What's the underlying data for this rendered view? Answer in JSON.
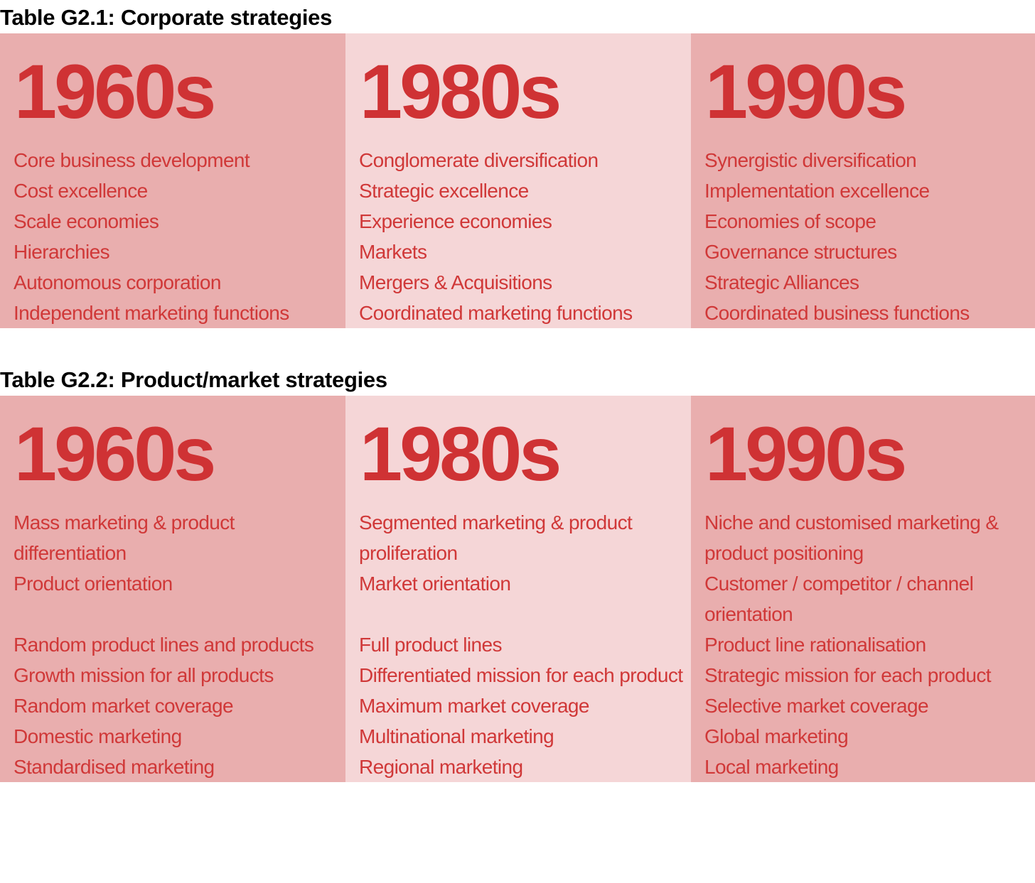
{
  "tables": [
    {
      "title": "Table G2.1: Corporate strategies",
      "headings": [
        "1960s",
        "1980s",
        "1990s"
      ],
      "rows": [
        [
          "Core business development",
          "Conglomerate diversification",
          "Synergistic diversification"
        ],
        [
          "Cost excellence",
          "Strategic excellence",
          "Implementation excellence"
        ],
        [
          "Scale economies",
          "Experience economies",
          "Economies of scope"
        ],
        [
          "Hierarchies",
          "Markets",
          "Governance structures"
        ],
        [
          "Autonomous corporation",
          "Mergers & Acquisitions",
          "Strategic Alliances"
        ],
        [
          "Independent marketing functions",
          "Coordinated marketing functions",
          "Coordinated business functions"
        ]
      ]
    },
    {
      "title": "Table G2.2: Product/market strategies",
      "headings": [
        "1960s",
        "1980s",
        "1990s"
      ],
      "rows": [
        [
          "Mass marketing & product differentiation",
          "Segmented marketing & product proliferation",
          "Niche and customised marketing & product positioning"
        ],
        [
          "Product orientation",
          "Market orientation",
          "Customer / competitor / channel orientation"
        ],
        [
          "Random product lines and products",
          "Full product lines",
          "Product line rationalisation"
        ],
        [
          "Growth mission for all products",
          "Differentiated mission for each product",
          "Strategic mission for each product"
        ],
        [
          "Random market coverage",
          "Maximum market coverage",
          "Selective market coverage"
        ],
        [
          "Domestic marketing",
          "Multinational marketing",
          "Global marketing"
        ],
        [
          "Standardised marketing",
          "Regional marketing",
          "Local marketing"
        ]
      ]
    }
  ]
}
